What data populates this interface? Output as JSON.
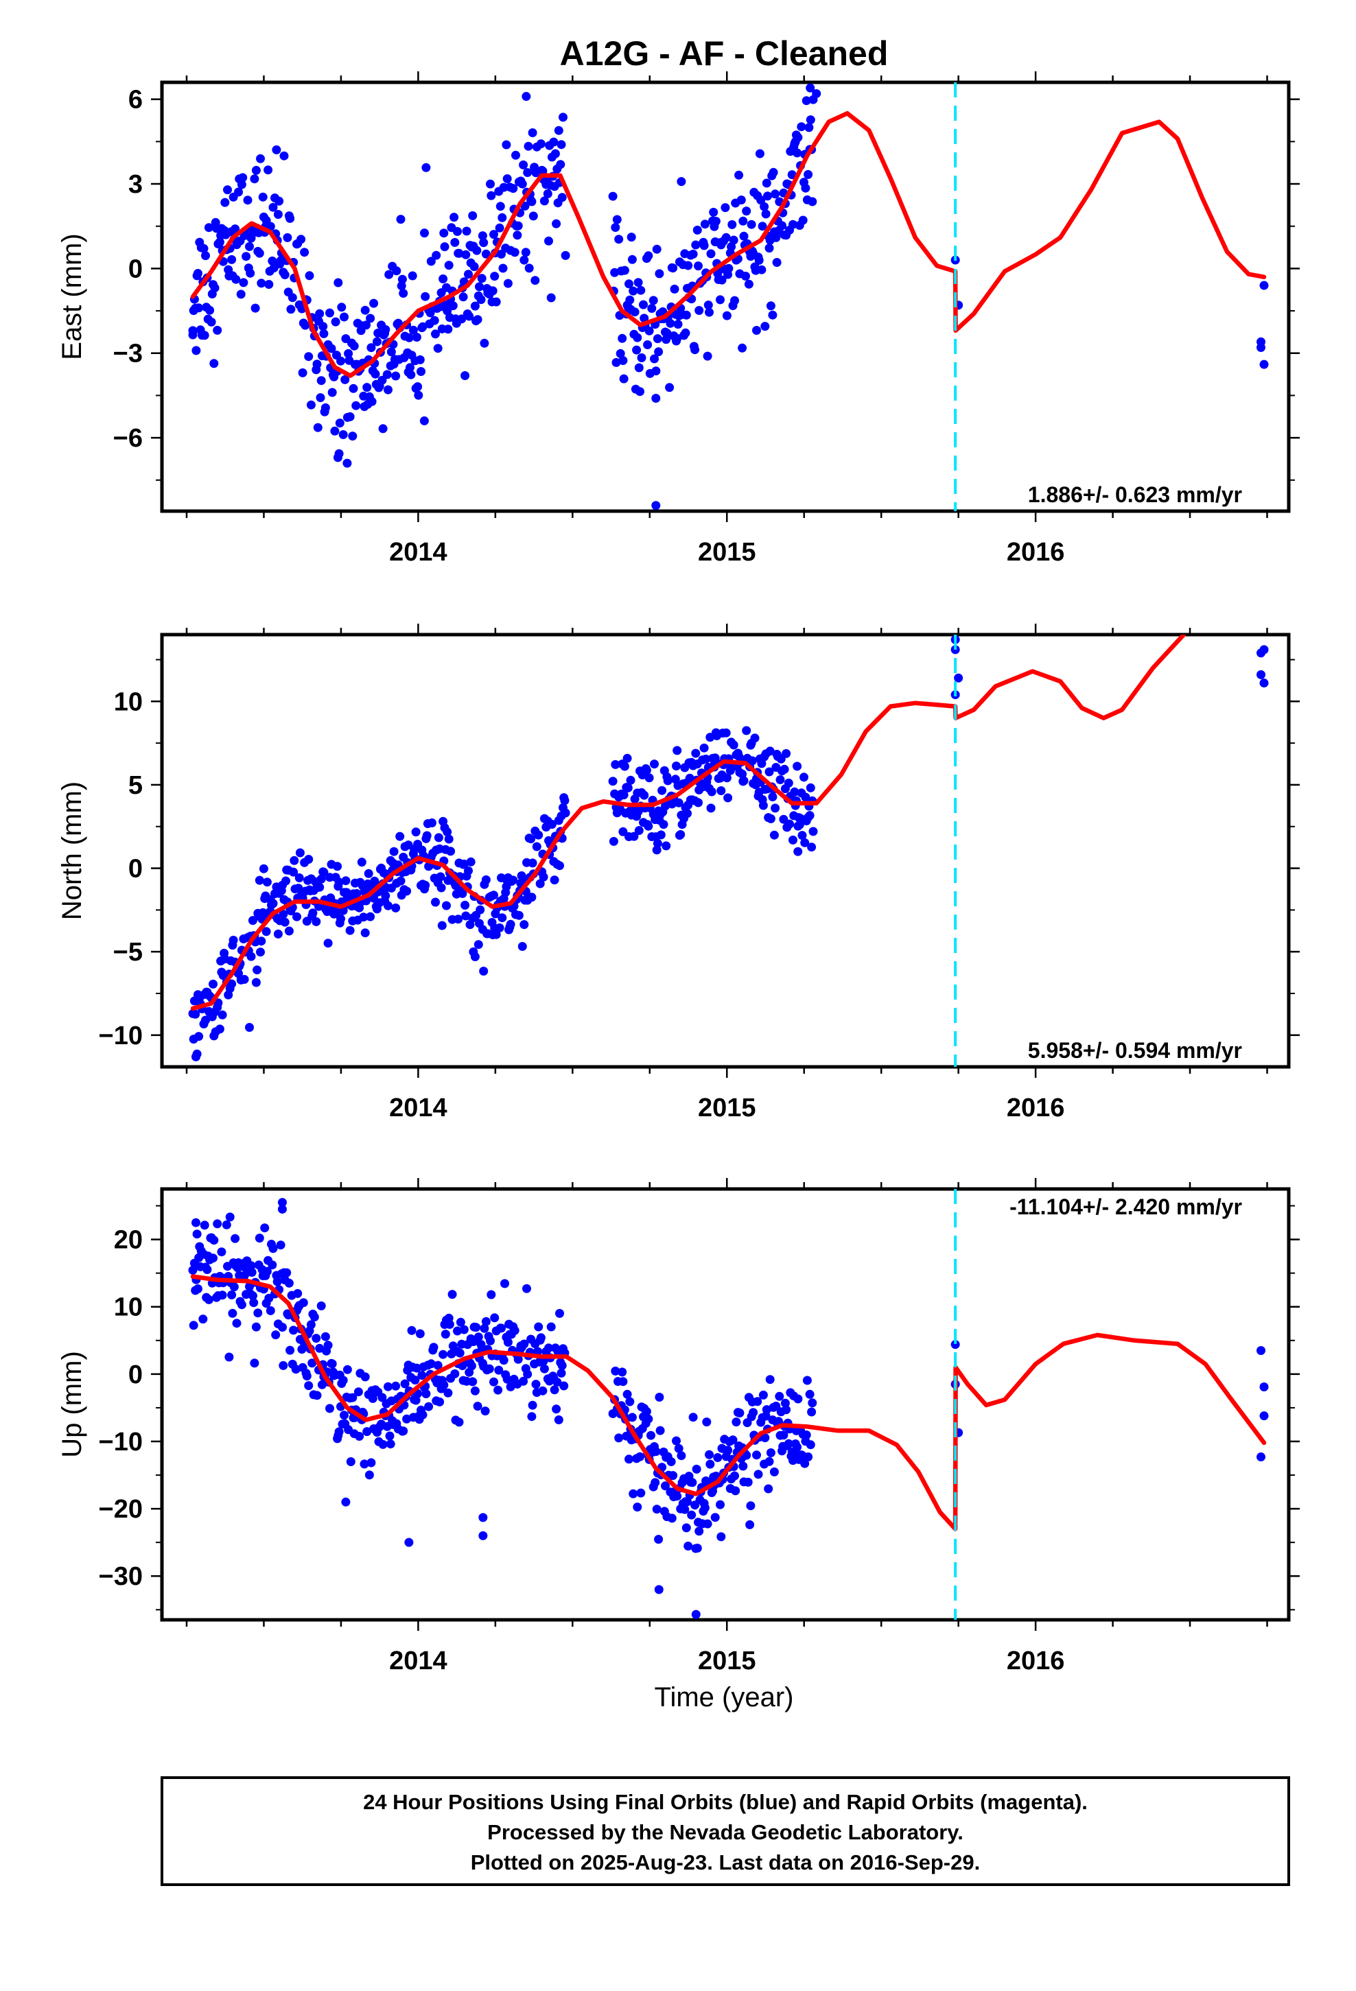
{
  "title": "A12G  - AF - Cleaned",
  "colors": {
    "data": "#0000ff",
    "model": "#ff0000",
    "break": "#00e5ff",
    "frame": "#000000"
  },
  "xaxis": {
    "label": "Time (year)",
    "range": [
      2013.17,
      2016.82
    ],
    "major_ticks": [
      "2014",
      "2015",
      "2016"
    ]
  },
  "footer": {
    "line1": "24 Hour Positions Using Final Orbits (blue) and Rapid Orbits (magenta).",
    "line2": "Processed by the Nevada Geodetic Laboratory.",
    "line3": "Plotted on 2025-Aug-23. Last data on 2016-Sep-29."
  },
  "chart_data": [
    {
      "type": "scatter",
      "component": "east",
      "ylabel": "East (mm)",
      "ylim": [
        -8.6,
        6.6
      ],
      "yticks": [
        "6",
        "3",
        "0",
        "−3",
        "−6"
      ],
      "ytick_values": [
        6,
        3,
        0,
        -3,
        -6
      ],
      "rate_text": "1.886+/- 0.623 mm/yr",
      "break_epoch": 2015.74,
      "model_line": [
        [
          2013.27,
          -1.0
        ],
        [
          2013.33,
          -0.1
        ],
        [
          2013.4,
          1.1
        ],
        [
          2013.46,
          1.6
        ],
        [
          2013.52,
          1.3
        ],
        [
          2013.6,
          0.0
        ],
        [
          2013.66,
          -2.2
        ],
        [
          2013.73,
          -3.5
        ],
        [
          2013.78,
          -3.8
        ],
        [
          2013.85,
          -3.3
        ],
        [
          2013.93,
          -2.3
        ],
        [
          2014.0,
          -1.5
        ],
        [
          2014.1,
          -1.0
        ],
        [
          2014.16,
          -0.6
        ],
        [
          2014.25,
          0.6
        ],
        [
          2014.33,
          2.3
        ],
        [
          2014.4,
          3.3
        ],
        [
          2014.46,
          3.3
        ],
        [
          2014.52,
          1.8
        ],
        [
          2014.6,
          -0.3
        ],
        [
          2014.66,
          -1.5
        ],
        [
          2014.72,
          -2.0
        ],
        [
          2014.8,
          -1.7
        ],
        [
          2014.88,
          -0.9
        ],
        [
          2014.95,
          -0.1
        ],
        [
          2015.03,
          0.5
        ],
        [
          2015.11,
          1.0
        ],
        [
          2015.18,
          2.2
        ],
        [
          2015.26,
          4.0
        ],
        [
          2015.33,
          5.2
        ],
        [
          2015.39,
          5.5
        ],
        [
          2015.46,
          4.9
        ],
        [
          2015.53,
          3.2
        ],
        [
          2015.61,
          1.1
        ],
        [
          2015.68,
          0.1
        ],
        [
          2015.74,
          -0.1
        ],
        [
          2015.741,
          -2.2
        ],
        [
          2015.8,
          -1.6
        ],
        [
          2015.9,
          -0.1
        ],
        [
          2016.0,
          0.5
        ],
        [
          2016.08,
          1.1
        ],
        [
          2016.18,
          2.8
        ],
        [
          2016.28,
          4.8
        ],
        [
          2016.4,
          5.2
        ],
        [
          2016.46,
          4.6
        ],
        [
          2016.54,
          2.5
        ],
        [
          2016.62,
          0.6
        ],
        [
          2016.69,
          -0.2
        ],
        [
          2016.74,
          -0.3
        ]
      ],
      "outliers": [
        [
          2014.35,
          6.1
        ],
        [
          2014.77,
          -8.4
        ],
        [
          2015.27,
          6.4
        ],
        [
          2015.29,
          6.2
        ],
        [
          2015.74,
          0.3
        ],
        [
          2015.75,
          -1.3
        ],
        [
          2016.74,
          -0.6
        ],
        [
          2016.73,
          -2.6
        ],
        [
          2016.73,
          -2.8
        ],
        [
          2016.74,
          -3.4
        ],
        [
          2013.27,
          -2.2
        ],
        [
          2013.77,
          -6.9
        ],
        [
          2013.74,
          -6.7
        ],
        [
          2014.77,
          -4.6
        ],
        [
          2014.02,
          -5.4
        ]
      ]
    },
    {
      "type": "scatter",
      "component": "north",
      "ylabel": "North (mm)",
      "ylim": [
        -11.9,
        14.0
      ],
      "yticks": [
        "10",
        "5",
        "0",
        "−5",
        "−10"
      ],
      "ytick_values": [
        10,
        5,
        0,
        -5,
        -10
      ],
      "rate_text": "5.958+/- 0.594 mm/yr",
      "break_epoch": 2015.74,
      "model_line": [
        [
          2013.27,
          -8.4
        ],
        [
          2013.33,
          -8.1
        ],
        [
          2013.4,
          -6.2
        ],
        [
          2013.46,
          -4.3
        ],
        [
          2013.53,
          -2.7
        ],
        [
          2013.6,
          -2.0
        ],
        [
          2013.68,
          -2.0
        ],
        [
          2013.75,
          -2.3
        ],
        [
          2013.84,
          -1.6
        ],
        [
          2013.92,
          -0.3
        ],
        [
          2014.0,
          0.6
        ],
        [
          2014.08,
          0.2
        ],
        [
          2014.16,
          -1.3
        ],
        [
          2014.24,
          -2.3
        ],
        [
          2014.3,
          -2.1
        ],
        [
          2014.38,
          -0.3
        ],
        [
          2014.46,
          2.1
        ],
        [
          2014.53,
          3.6
        ],
        [
          2014.6,
          4.0
        ],
        [
          2014.68,
          3.8
        ],
        [
          2014.76,
          3.8
        ],
        [
          2014.84,
          4.4
        ],
        [
          2014.92,
          5.5
        ],
        [
          2014.99,
          6.4
        ],
        [
          2015.06,
          6.3
        ],
        [
          2015.14,
          5.0
        ],
        [
          2015.21,
          3.9
        ],
        [
          2015.29,
          3.9
        ],
        [
          2015.37,
          5.6
        ],
        [
          2015.45,
          8.2
        ],
        [
          2015.53,
          9.7
        ],
        [
          2015.61,
          9.9
        ],
        [
          2015.68,
          9.8
        ],
        [
          2015.74,
          9.7
        ],
        [
          2015.741,
          9.0
        ],
        [
          2015.8,
          9.5
        ],
        [
          2015.87,
          10.9
        ],
        [
          2015.99,
          11.8
        ],
        [
          2016.08,
          11.2
        ],
        [
          2016.15,
          9.6
        ],
        [
          2016.22,
          9.0
        ],
        [
          2016.28,
          9.5
        ],
        [
          2016.38,
          12.0
        ],
        [
          2016.48,
          14.0
        ]
      ],
      "outliers": [
        [
          2015.74,
          13.7
        ],
        [
          2015.74,
          13.1
        ],
        [
          2015.75,
          11.4
        ],
        [
          2015.74,
          10.4
        ],
        [
          2016.73,
          12.9
        ],
        [
          2016.74,
          13.1
        ],
        [
          2016.73,
          11.6
        ],
        [
          2016.74,
          11.1
        ],
        [
          2013.28,
          -11.3
        ],
        [
          2015.23,
          1.0
        ]
      ]
    },
    {
      "type": "scatter",
      "component": "up",
      "ylabel": "Up (mm)",
      "ylim": [
        -36.5,
        27.5
      ],
      "yticks": [
        "20",
        "10",
        "0",
        "−10",
        "−20",
        "−30"
      ],
      "ytick_values": [
        20,
        10,
        0,
        -10,
        -20,
        -30
      ],
      "rate_text": "-11.104+/- 2.420 mm/yr",
      "break_epoch": 2015.74,
      "model_line": [
        [
          2013.27,
          14.5
        ],
        [
          2013.35,
          14.0
        ],
        [
          2013.45,
          13.8
        ],
        [
          2013.52,
          13.0
        ],
        [
          2013.58,
          10.5
        ],
        [
          2013.64,
          5.0
        ],
        [
          2013.7,
          -0.5
        ],
        [
          2013.77,
          -5.0
        ],
        [
          2013.83,
          -6.8
        ],
        [
          2013.9,
          -6.0
        ],
        [
          2013.97,
          -3.0
        ],
        [
          2014.05,
          0.0
        ],
        [
          2014.15,
          2.3
        ],
        [
          2014.23,
          3.3
        ],
        [
          2014.32,
          3.0
        ],
        [
          2014.4,
          2.6
        ],
        [
          2014.48,
          2.6
        ],
        [
          2014.55,
          0.5
        ],
        [
          2014.63,
          -3.5
        ],
        [
          2014.7,
          -9.0
        ],
        [
          2014.77,
          -14.0
        ],
        [
          2014.84,
          -17.0
        ],
        [
          2014.9,
          -17.8
        ],
        [
          2014.97,
          -16.0
        ],
        [
          2015.04,
          -12.0
        ],
        [
          2015.11,
          -8.8
        ],
        [
          2015.18,
          -7.6
        ],
        [
          2015.26,
          -7.8
        ],
        [
          2015.36,
          -8.4
        ],
        [
          2015.46,
          -8.4
        ],
        [
          2015.55,
          -10.5
        ],
        [
          2015.62,
          -14.5
        ],
        [
          2015.69,
          -20.5
        ],
        [
          2015.74,
          -23.0
        ],
        [
          2015.741,
          1.0
        ],
        [
          2015.78,
          -1.5
        ],
        [
          2015.84,
          -4.6
        ],
        [
          2015.9,
          -3.8
        ],
        [
          2016.0,
          1.5
        ],
        [
          2016.09,
          4.5
        ],
        [
          2016.2,
          5.8
        ],
        [
          2016.32,
          5.0
        ],
        [
          2016.46,
          4.5
        ],
        [
          2016.55,
          1.5
        ],
        [
          2016.63,
          -3.5
        ],
        [
          2016.74,
          -10.2
        ]
      ],
      "outliers": [
        [
          2013.56,
          25.5
        ],
        [
          2013.56,
          24.5
        ],
        [
          2014.21,
          -21.3
        ],
        [
          2014.21,
          -24.0
        ],
        [
          2013.97,
          -25.0
        ],
        [
          2014.78,
          -32.0
        ],
        [
          2014.9,
          -35.7
        ],
        [
          2015.74,
          4.4
        ],
        [
          2015.74,
          -1.5
        ],
        [
          2015.75,
          -8.7
        ],
        [
          2016.73,
          3.5
        ],
        [
          2016.74,
          -1.9
        ],
        [
          2016.74,
          -6.2
        ],
        [
          2016.73,
          -12.3
        ],
        [
          2013.28,
          22.5
        ]
      ]
    }
  ]
}
